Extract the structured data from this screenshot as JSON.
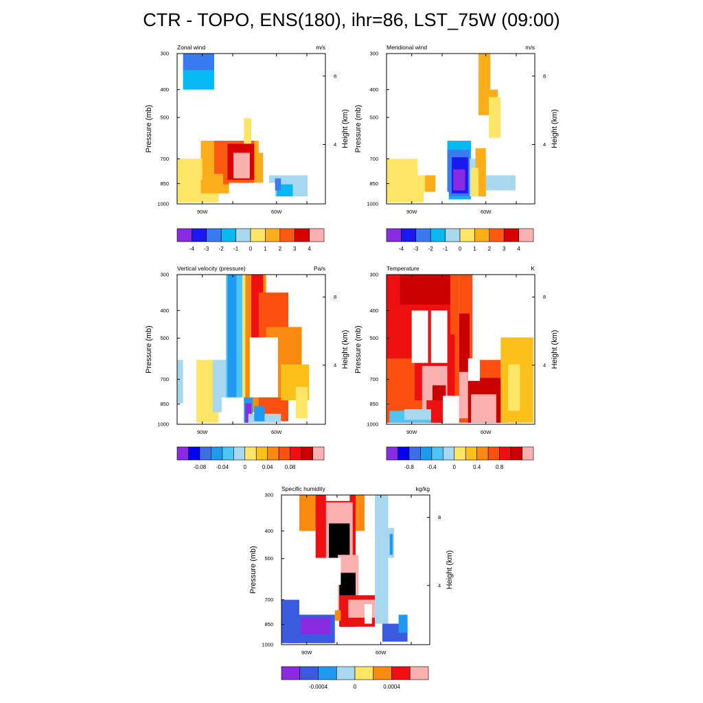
{
  "figure": {
    "title": "CTR - TOPO, ENS(180), ihr=86, LST_75W (09:00)"
  },
  "palettes": {
    "wind": [
      "#8a2be2",
      "#1a1aee",
      "#3a7af0",
      "#08b8f0",
      "#a8d8f0",
      "#fde666",
      "#fbae1a",
      "#fb5a10",
      "#d90000",
      "#fbb0b0"
    ],
    "omega": [
      "#8a2be2",
      "#0000ee",
      "#3b6fe8",
      "#1e9bf0",
      "#4cc5f5",
      "#a8d8f0",
      "#fde666",
      "#fbc01a",
      "#fb8a10",
      "#fb5010",
      "#ee1010",
      "#c80000",
      "#fbb0b0"
    ],
    "humidity": [
      "#8a2be2",
      "#3a5ae0",
      "#1e9bf0",
      "#a8d8f0",
      "#fde666",
      "#fb8a10",
      "#ee1010",
      "#fbb0b0"
    ]
  },
  "chart_data": [
    {
      "type": "heatmap",
      "title": "Zonal wind",
      "units": "m/s",
      "ylabel": "Pressure (mb)",
      "y2label": "Height (km)",
      "yticks": [
        "300",
        "400",
        "500",
        "700",
        "850",
        "1000"
      ],
      "y2ticks": [
        "8",
        "4"
      ],
      "xticks": [
        "90W",
        "60W"
      ],
      "palette": "wind",
      "colorbar_labels": [
        "-4",
        "-3",
        "-2",
        "-1",
        "0",
        "1",
        "2",
        "3",
        "4"
      ],
      "levels": [
        -4,
        -3,
        -2,
        -1,
        0,
        1,
        2,
        3,
        4
      ]
    },
    {
      "type": "heatmap",
      "title": "Meridional wind",
      "units": "m/s",
      "ylabel": "Pressure (mb)",
      "y2label": "Height (km)",
      "yticks": [
        "300",
        "400",
        "500",
        "700",
        "850",
        "1000"
      ],
      "y2ticks": [
        "8",
        "4"
      ],
      "xticks": [
        "90W",
        "60W"
      ],
      "palette": "wind",
      "colorbar_labels": [
        "-4",
        "-3",
        "-2",
        "-1",
        "0",
        "1",
        "2",
        "3",
        "4"
      ],
      "levels": [
        -4,
        -3,
        -2,
        -1,
        0,
        1,
        2,
        3,
        4
      ]
    },
    {
      "type": "heatmap",
      "title": "Vertical velocity (pressure)",
      "units": "Pa/s",
      "ylabel": "Pressure (mb)",
      "y2label": "Height (km)",
      "yticks": [
        "300",
        "400",
        "500",
        "700",
        "850",
        "1000"
      ],
      "y2ticks": [
        "8",
        "4"
      ],
      "xticks": [
        "90W",
        "60W"
      ],
      "palette": "omega",
      "colorbar_labels": [
        "-0.08",
        "-0.04",
        "0",
        "0.04",
        "0.08"
      ],
      "levels": [
        -0.08,
        -0.04,
        0,
        0.04,
        0.08
      ]
    },
    {
      "type": "heatmap",
      "title": "Temperature",
      "units": "K",
      "ylabel": "Pressure (mb)",
      "y2label": "Height (km)",
      "yticks": [
        "300",
        "400",
        "500",
        "700",
        "850",
        "1000"
      ],
      "y2ticks": [
        "8",
        "4"
      ],
      "xticks": [
        "90W",
        "60W"
      ],
      "palette": "omega",
      "colorbar_labels": [
        "-0.8",
        "-0.4",
        "0",
        "0.4",
        "0.8"
      ],
      "levels": [
        -0.8,
        -0.4,
        0,
        0.4,
        0.8
      ]
    },
    {
      "type": "heatmap",
      "title": "Specific humidity",
      "units": "kg/kg",
      "ylabel": "Pressure (mb)",
      "y2label": "Height (km)",
      "yticks": [
        "300",
        "400",
        "500",
        "700",
        "850",
        "1000"
      ],
      "y2ticks": [
        "8",
        "4"
      ],
      "xticks": [
        "90W",
        "60W"
      ],
      "palette": "humidity",
      "colorbar_labels": [
        "-0.0004",
        "0",
        "0.0004"
      ],
      "levels": [
        -0.0004,
        0,
        0.0004
      ]
    }
  ]
}
